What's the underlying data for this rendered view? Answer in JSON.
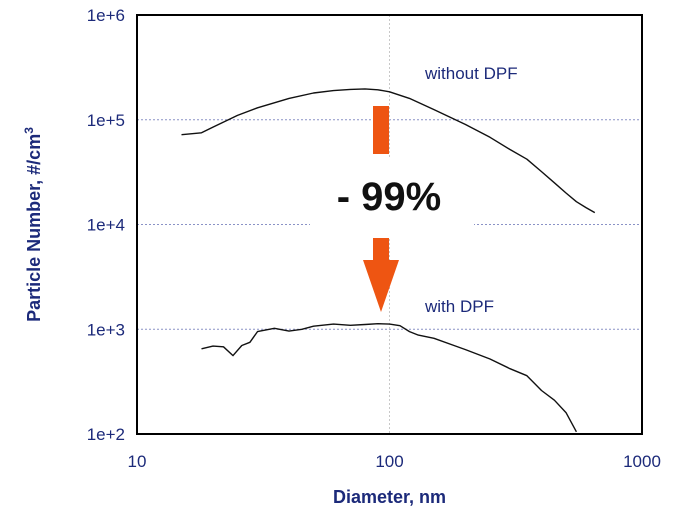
{
  "chart_data": {
    "type": "line",
    "title": "",
    "xlabel": "Diameter, nm",
    "ylabel": "Particle Number, #/cm",
    "ylabel_superscript": "3",
    "x_scale": "log",
    "y_scale": "log",
    "xlim": [
      10,
      1000
    ],
    "ylim": [
      100,
      1000000
    ],
    "x_ticks": [
      "10",
      "100",
      "1000"
    ],
    "y_ticks": [
      "1e+6",
      "1e+5",
      "1e+4",
      "1e+3",
      "1e+2"
    ],
    "grid": true,
    "series": [
      {
        "name": "without DPF",
        "color": "#111111",
        "x": [
          15,
          18,
          20,
          25,
          30,
          40,
          50,
          60,
          70,
          80,
          90,
          100,
          120,
          150,
          200,
          250,
          300,
          350,
          400,
          450,
          500,
          550,
          600,
          650
        ],
        "y": [
          72000,
          75000,
          85000,
          110000,
          130000,
          160000,
          180000,
          190000,
          195000,
          197000,
          193000,
          185000,
          160000,
          125000,
          90000,
          68000,
          52000,
          42000,
          32000,
          25000,
          20000,
          16500,
          14500,
          13000
        ]
      },
      {
        "name": "with DPF",
        "color": "#111111",
        "x": [
          18,
          20,
          22,
          24,
          26,
          28,
          30,
          35,
          40,
          45,
          50,
          60,
          70,
          80,
          90,
          100,
          110,
          120,
          130,
          150,
          180,
          200,
          250,
          300,
          350,
          400,
          450,
          500,
          550
        ],
        "y": [
          650,
          690,
          680,
          560,
          700,
          750,
          950,
          1020,
          960,
          1000,
          1070,
          1120,
          1090,
          1110,
          1130,
          1120,
          1080,
          950,
          880,
          820,
          700,
          640,
          520,
          420,
          360,
          260,
          210,
          160,
          105
        ]
      }
    ],
    "annotations": [
      {
        "text": "- 99%",
        "color": "#ee5512",
        "arrow": "down"
      }
    ]
  }
}
